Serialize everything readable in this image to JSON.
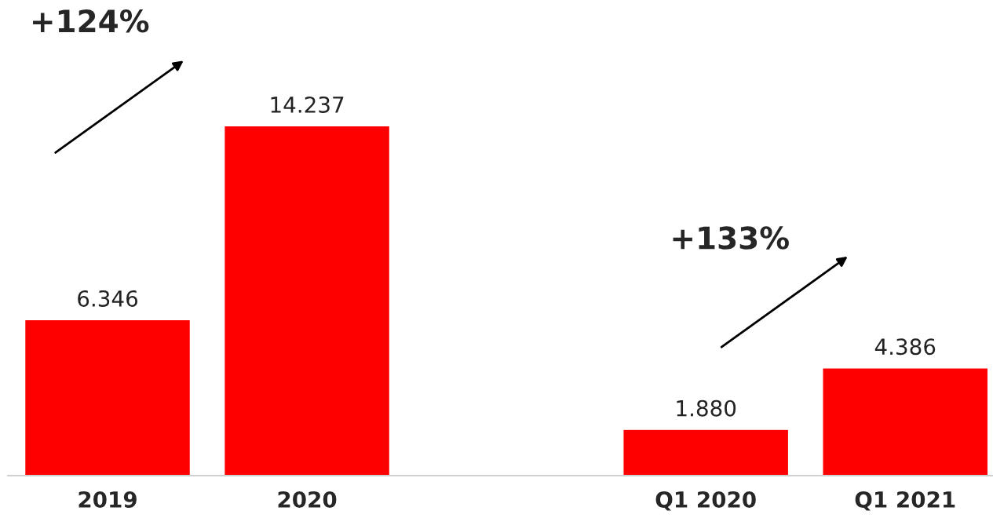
{
  "chart_data": {
    "type": "bar",
    "categories": [
      "2019",
      "2020",
      null,
      "Q1 2020",
      "Q1 2021"
    ],
    "values": [
      6346,
      14237,
      null,
      1880,
      4386
    ],
    "value_labels": [
      "6.346",
      "14.237",
      null,
      "1.880",
      "4.386"
    ],
    "color": "#ff0000",
    "annotations": [
      "+124%",
      "+133%"
    ],
    "grid": false,
    "legend": false
  }
}
